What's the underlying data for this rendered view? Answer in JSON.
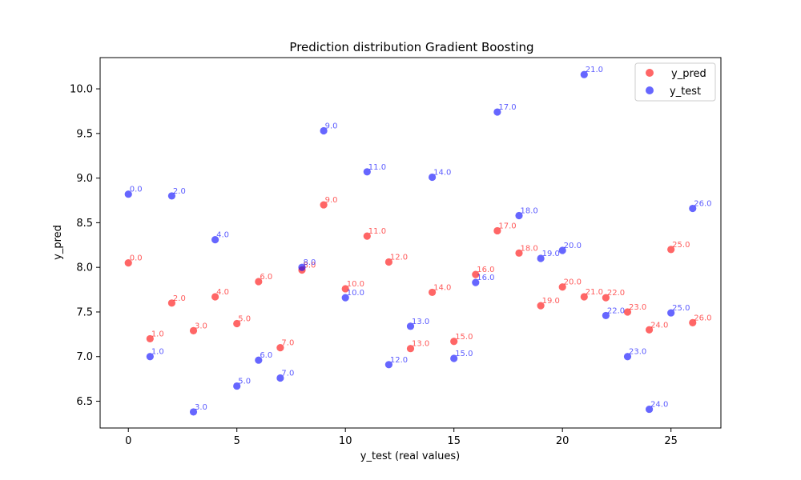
{
  "chart_data": {
    "type": "scatter",
    "title": "Prediction distribution Gradient Boosting",
    "xlabel": "y_test (real values)",
    "ylabel": "y_pred",
    "xlim": [
      -1.3,
      27.3
    ],
    "ylim": [
      6.2,
      10.35
    ],
    "x_ticks": [
      0,
      5,
      10,
      15,
      20,
      25
    ],
    "y_ticks": [
      6.5,
      7.0,
      7.5,
      8.0,
      8.5,
      9.0,
      9.5,
      10.0
    ],
    "legend_position": "top-right",
    "grid": false,
    "series": [
      {
        "name": "y_pred",
        "color": "#ff0000",
        "points": [
          {
            "x": 0,
            "y": 8.05,
            "label": "0.0"
          },
          {
            "x": 1,
            "y": 7.2,
            "label": "1.0"
          },
          {
            "x": 2,
            "y": 7.6,
            "label": "2.0"
          },
          {
            "x": 3,
            "y": 7.29,
            "label": "3.0"
          },
          {
            "x": 4,
            "y": 7.67,
            "label": "4.0"
          },
          {
            "x": 5,
            "y": 7.37,
            "label": "5.0"
          },
          {
            "x": 6,
            "y": 7.84,
            "label": "6.0"
          },
          {
            "x": 7,
            "y": 7.1,
            "label": "7.0"
          },
          {
            "x": 8,
            "y": 7.97,
            "label": "8.0"
          },
          {
            "x": 9,
            "y": 8.7,
            "label": "9.0"
          },
          {
            "x": 10,
            "y": 7.76,
            "label": "10.0"
          },
          {
            "x": 11,
            "y": 8.35,
            "label": "11.0"
          },
          {
            "x": 12,
            "y": 8.06,
            "label": "12.0"
          },
          {
            "x": 13,
            "y": 7.09,
            "label": "13.0"
          },
          {
            "x": 14,
            "y": 7.72,
            "label": "14.0"
          },
          {
            "x": 15,
            "y": 7.17,
            "label": "15.0"
          },
          {
            "x": 16,
            "y": 7.92,
            "label": "16.0"
          },
          {
            "x": 17,
            "y": 8.41,
            "label": "17.0"
          },
          {
            "x": 18,
            "y": 8.16,
            "label": "18.0"
          },
          {
            "x": 19,
            "y": 7.57,
            "label": "19.0"
          },
          {
            "x": 20,
            "y": 7.78,
            "label": "20.0"
          },
          {
            "x": 21,
            "y": 7.67,
            "label": "21.0"
          },
          {
            "x": 22,
            "y": 7.66,
            "label": "22.0"
          },
          {
            "x": 23,
            "y": 7.5,
            "label": "23.0"
          },
          {
            "x": 24,
            "y": 7.3,
            "label": "24.0"
          },
          {
            "x": 25,
            "y": 8.2,
            "label": "25.0"
          },
          {
            "x": 26,
            "y": 7.38,
            "label": "26.0"
          }
        ]
      },
      {
        "name": "y_test",
        "color": "#0000ff",
        "points": [
          {
            "x": 0,
            "y": 8.82,
            "label": "0.0"
          },
          {
            "x": 1,
            "y": 7.0,
            "label": "1.0"
          },
          {
            "x": 2,
            "y": 8.8,
            "label": "2.0"
          },
          {
            "x": 3,
            "y": 6.38,
            "label": "3.0"
          },
          {
            "x": 4,
            "y": 8.31,
            "label": "4.0"
          },
          {
            "x": 5,
            "y": 6.67,
            "label": "5.0"
          },
          {
            "x": 6,
            "y": 6.96,
            "label": "6.0"
          },
          {
            "x": 7,
            "y": 6.76,
            "label": "7.0"
          },
          {
            "x": 8,
            "y": 8.0,
            "label": "8.0"
          },
          {
            "x": 9,
            "y": 9.53,
            "label": "9.0"
          },
          {
            "x": 10,
            "y": 7.66,
            "label": "10.0"
          },
          {
            "x": 11,
            "y": 9.07,
            "label": "11.0"
          },
          {
            "x": 12,
            "y": 6.91,
            "label": "12.0"
          },
          {
            "x": 13,
            "y": 7.34,
            "label": "13.0"
          },
          {
            "x": 14,
            "y": 9.01,
            "label": "14.0"
          },
          {
            "x": 15,
            "y": 6.98,
            "label": "15.0"
          },
          {
            "x": 16,
            "y": 7.83,
            "label": "16.0"
          },
          {
            "x": 17,
            "y": 9.74,
            "label": "17.0"
          },
          {
            "x": 18,
            "y": 8.58,
            "label": "18.0"
          },
          {
            "x": 19,
            "y": 8.1,
            "label": "19.0"
          },
          {
            "x": 20,
            "y": 8.19,
            "label": "20.0"
          },
          {
            "x": 21,
            "y": 10.16,
            "label": "21.0"
          },
          {
            "x": 22,
            "y": 7.46,
            "label": "22.0"
          },
          {
            "x": 23,
            "y": 7.0,
            "label": "23.0"
          },
          {
            "x": 24,
            "y": 6.41,
            "label": "24.0"
          },
          {
            "x": 25,
            "y": 7.49,
            "label": "25.0"
          },
          {
            "x": 26,
            "y": 8.66,
            "label": "26.0"
          }
        ]
      }
    ]
  }
}
